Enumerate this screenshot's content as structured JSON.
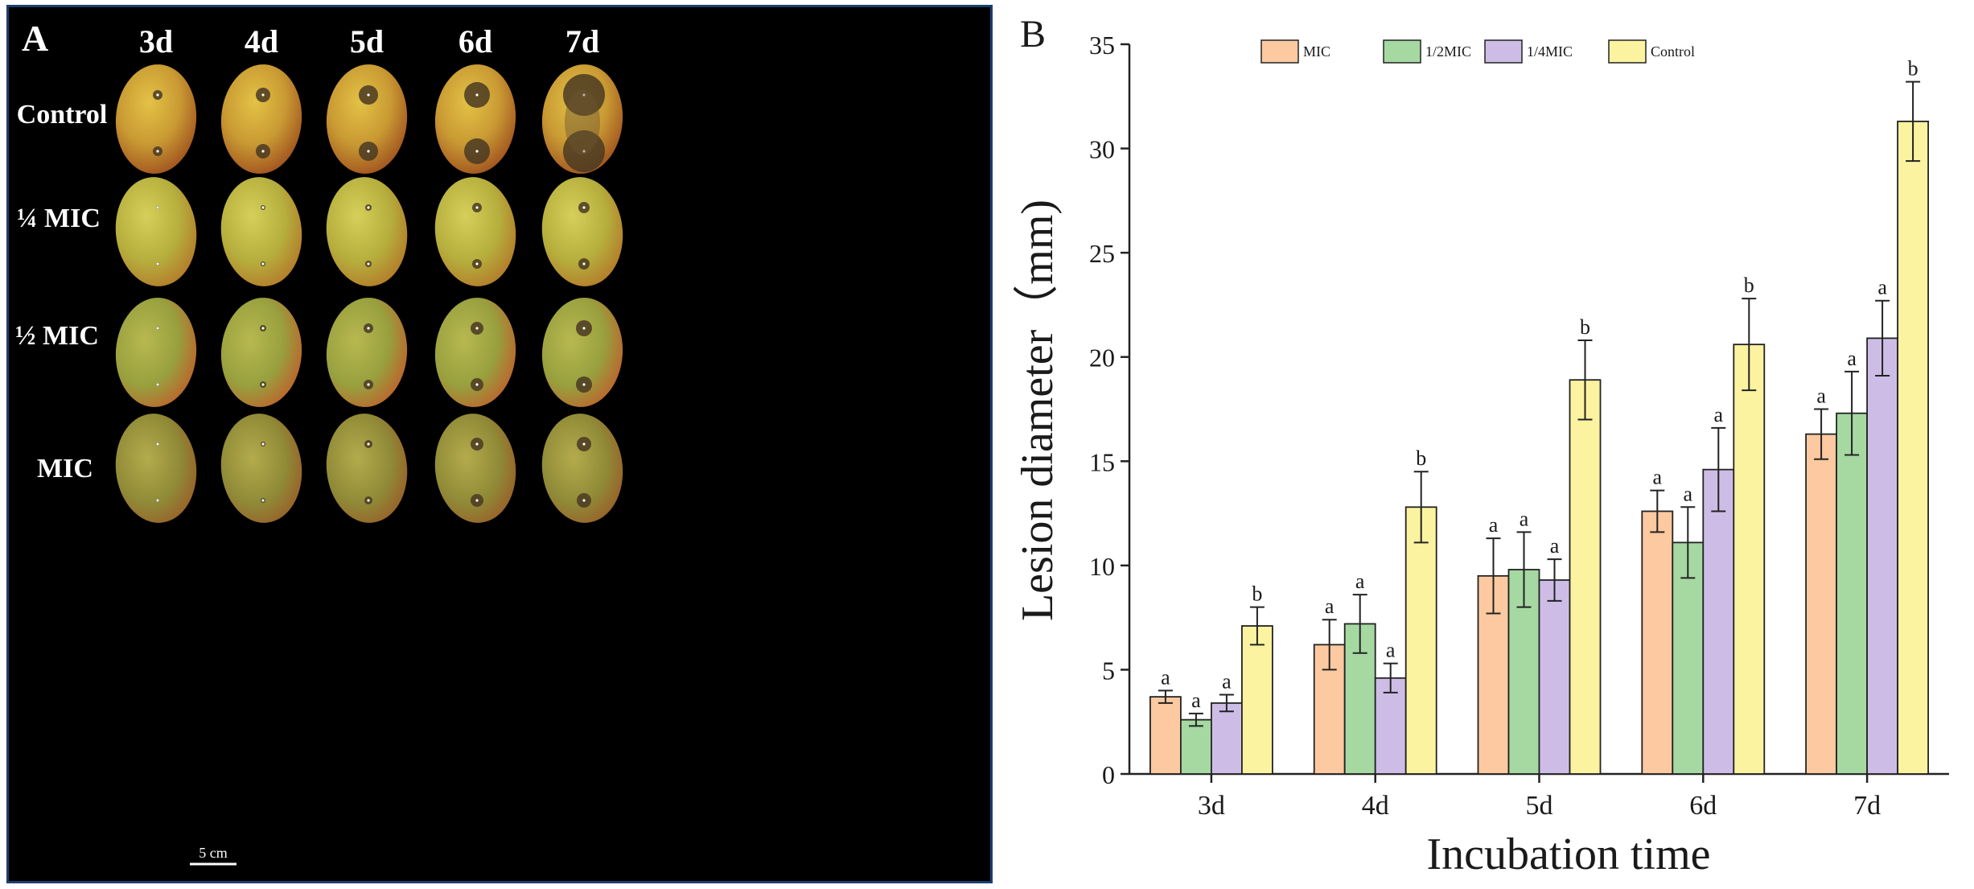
{
  "panel_a": {
    "label": "A",
    "columns": [
      "3d",
      "4d",
      "5d",
      "6d",
      "7d"
    ],
    "rows": [
      "Control",
      "¼ MIC",
      "½ MIC",
      "MIC"
    ],
    "scale_bar": "5 cm"
  },
  "colors": {
    "MIC": "#fcc9a0",
    "1/2MIC": "#a6d9a2",
    "1/4MIC": "#cdbde6",
    "Control": "#fbf3a0"
  },
  "chart_data": {
    "type": "bar",
    "panel_label": "B",
    "title": "",
    "xlabel": "Incubation time",
    "ylabel": "Lesion diameter（mm)",
    "categories": [
      "3d",
      "4d",
      "5d",
      "6d",
      "7d"
    ],
    "ylim": [
      0,
      35
    ],
    "yticks": [
      0,
      5,
      10,
      15,
      20,
      25,
      30,
      35
    ],
    "legend_position": "top",
    "series": [
      {
        "name": "MIC",
        "values": [
          3.7,
          6.2,
          9.5,
          12.6,
          16.3
        ],
        "errors": [
          0.3,
          1.2,
          1.8,
          1.0,
          1.2
        ],
        "letters": [
          "a",
          "a",
          "a",
          "a",
          "a"
        ]
      },
      {
        "name": "1/2MIC",
        "values": [
          2.6,
          7.2,
          9.8,
          11.1,
          17.3
        ],
        "errors": [
          0.3,
          1.4,
          1.8,
          1.7,
          2.0
        ],
        "letters": [
          "a",
          "a",
          "a",
          "a",
          "a"
        ]
      },
      {
        "name": "1/4MIC",
        "values": [
          3.4,
          4.6,
          9.3,
          14.6,
          20.9
        ],
        "errors": [
          0.4,
          0.7,
          1.0,
          2.0,
          1.8
        ],
        "letters": [
          "a",
          "a",
          "a",
          "a",
          "a"
        ]
      },
      {
        "name": "Control",
        "values": [
          7.1,
          12.8,
          18.9,
          20.6,
          31.3
        ],
        "errors": [
          0.9,
          1.7,
          1.9,
          2.2,
          1.9
        ],
        "letters": [
          "b",
          "b",
          "b",
          "b",
          "b"
        ]
      }
    ]
  }
}
